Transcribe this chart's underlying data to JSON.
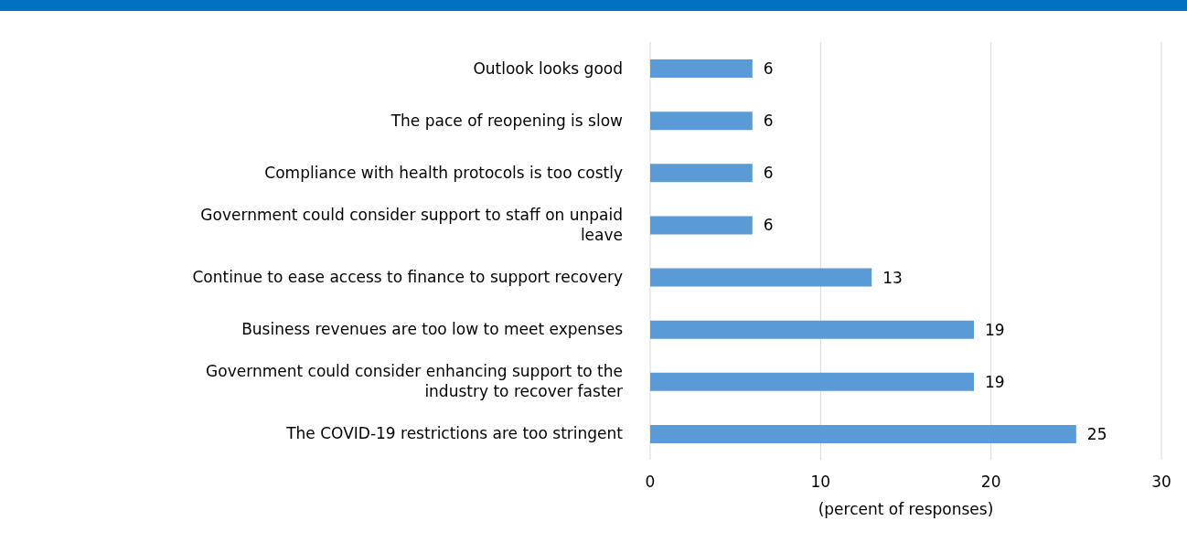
{
  "chart_data": {
    "type": "bar",
    "orientation": "horizontal",
    "xlabel": "(percent of responses)",
    "categories": [
      "Outlook looks good",
      "The pace of reopening is slow",
      "Compliance with health protocols is too costly",
      "Government could consider support to staff on unpaid leave",
      "Continue to ease access to finance to support recovery",
      "Business revenues are too low to meet expenses",
      "Government could consider enhancing support to the industry to recover faster",
      "The COVID-19 restrictions are too stringent"
    ],
    "values": [
      6,
      6,
      6,
      6,
      13,
      19,
      19,
      25
    ],
    "color": "#5b9bd5",
    "xlim": [
      0,
      30
    ],
    "xticks": [
      0,
      10,
      20,
      30
    ],
    "grid": "x",
    "data_labels": true
  }
}
